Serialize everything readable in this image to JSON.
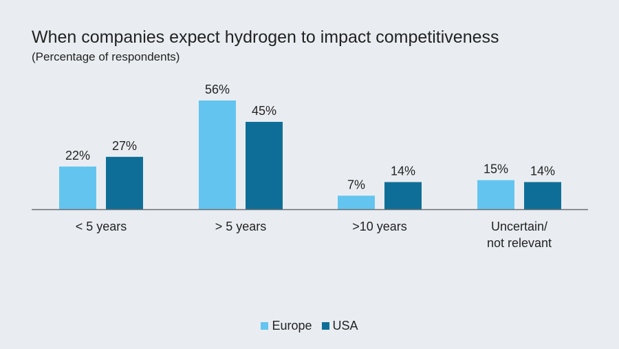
{
  "chart_data": {
    "type": "bar",
    "title": "When companies expect hydrogen to impact competitiveness",
    "subtitle": "(Percentage of respondents)",
    "categories": [
      [
        "< 5 years"
      ],
      [
        "> 5 years"
      ],
      [
        ">10 years"
      ],
      [
        "Uncertain/",
        "not relevant"
      ]
    ],
    "series": [
      {
        "name": "Europe",
        "color": "#63c5ef",
        "values": [
          22,
          56,
          7,
          15
        ]
      },
      {
        "name": "USA",
        "color": "#0f6e97",
        "values": [
          27,
          45,
          14,
          14
        ]
      }
    ],
    "value_suffix": "%",
    "ylim": [
      0,
      60
    ],
    "grid": false,
    "legend": "bottom-center"
  }
}
